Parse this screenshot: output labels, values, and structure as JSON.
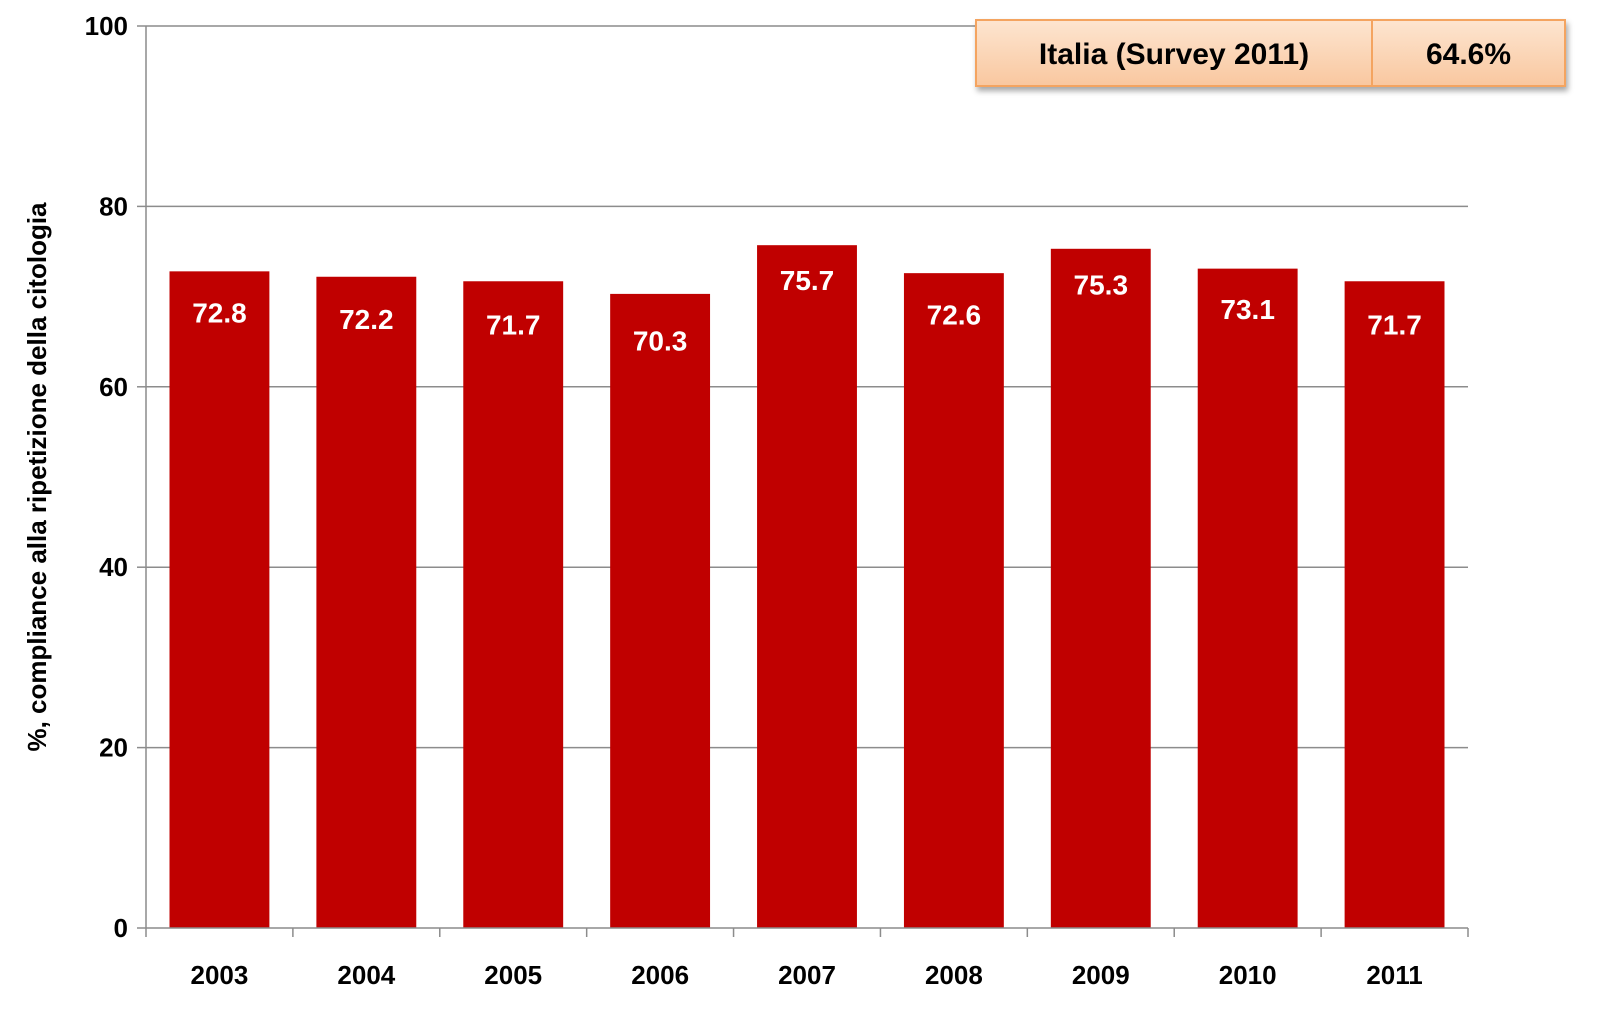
{
  "chart_data": {
    "type": "bar",
    "categories": [
      "2003",
      "2004",
      "2005",
      "2006",
      "2007",
      "2008",
      "2009",
      "2010",
      "2011"
    ],
    "values": [
      72.8,
      72.2,
      71.7,
      70.3,
      75.7,
      72.6,
      75.3,
      73.1,
      71.7
    ],
    "value_labels": [
      "72.8",
      "72.2",
      "71.7",
      "70.3",
      "75.7",
      "72.6",
      "75.3",
      "73.1",
      "71.7"
    ],
    "xlabel": "",
    "ylabel": "%, compliance alla ripetizione della citologia",
    "ylim": [
      0,
      100
    ],
    "yticks": [
      "0",
      "20",
      "40",
      "60",
      "80",
      "100"
    ],
    "grid": true,
    "bar_color": "#c00000",
    "annotation": {
      "label": "Italia (Survey 2011)",
      "value": "64.6%",
      "fill": "#fcd5b4",
      "border": "#f4a460"
    }
  }
}
